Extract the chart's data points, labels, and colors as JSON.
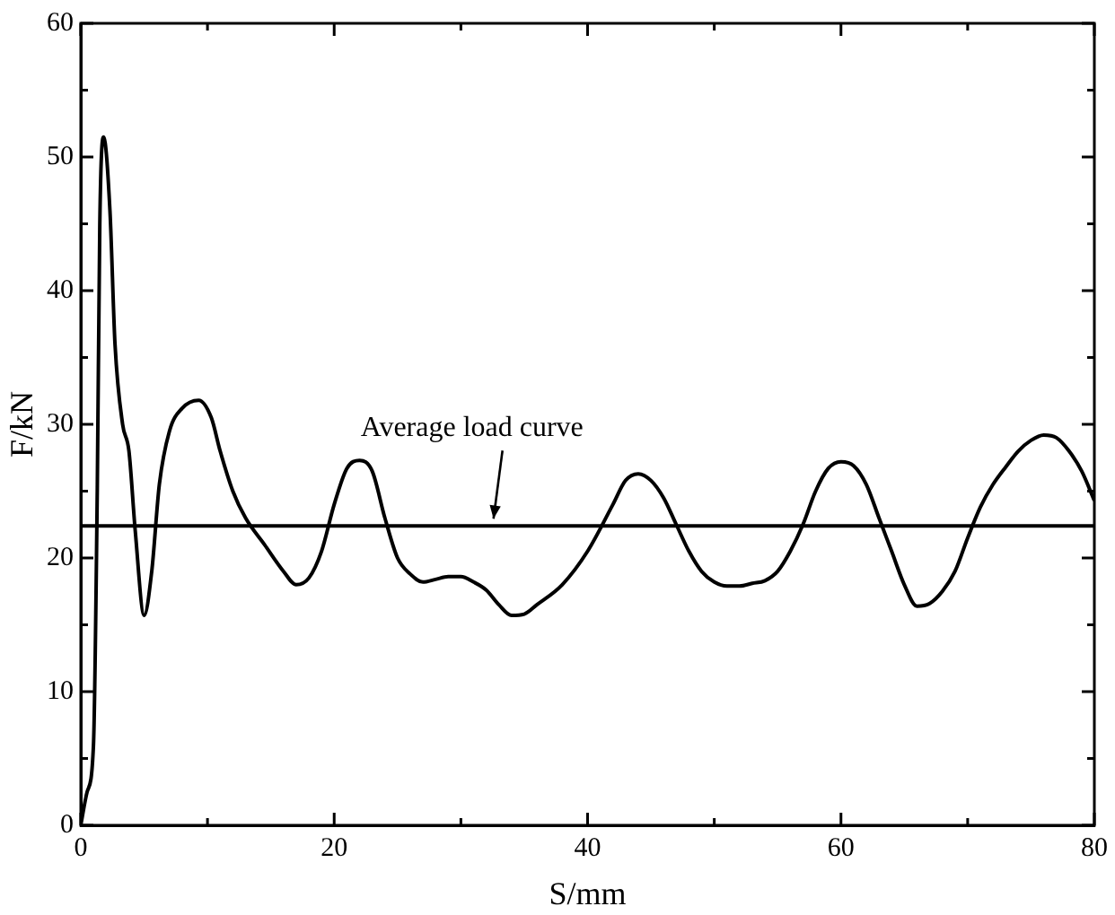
{
  "chart_data": {
    "type": "line",
    "xlabel": "S/mm",
    "ylabel": "F/kN",
    "x": [
      0,
      0.5,
      1,
      1.3,
      1.5,
      1.8,
      2.3,
      2.7,
      3.3,
      3.8,
      4.3,
      5,
      5.6,
      6.2,
      7,
      8,
      9.3,
      10.3,
      11,
      12,
      13,
      14.5,
      16,
      17,
      18,
      19,
      20,
      21,
      22,
      23,
      24,
      25,
      26,
      27,
      28,
      29,
      30,
      31,
      32,
      33,
      34,
      35,
      36,
      38,
      40,
      42,
      43,
      44,
      45,
      46,
      47,
      48,
      49,
      50,
      51,
      52,
      53,
      54,
      55,
      56,
      57,
      58,
      59,
      60,
      61,
      62,
      63,
      64,
      65,
      66,
      67,
      68,
      69,
      70,
      71,
      72,
      73,
      74,
      75,
      76,
      77,
      78,
      79,
      80
    ],
    "series": [
      {
        "color": "#000000",
        "values": [
          0,
          2.5,
          6,
          25,
          45,
          51.5,
          46,
          36,
          30,
          28,
          22,
          15.7,
          19,
          25.5,
          29.5,
          31.2,
          31.8,
          30.5,
          28,
          25,
          23,
          21,
          19,
          18,
          18.5,
          20.5,
          24,
          26.7,
          27.3,
          26.5,
          23,
          20,
          18.8,
          18.2,
          18.4,
          18.6,
          18.6,
          18.2,
          17.6,
          16.5,
          15.7,
          15.8,
          16.5,
          18,
          20.5,
          24,
          25.8,
          26.3,
          25.8,
          24.5,
          22.5,
          20.5,
          19,
          18.2,
          17.9,
          17.9,
          18.1,
          18.3,
          19,
          20.5,
          22.5,
          25,
          26.7,
          27.2,
          26.9,
          25.5,
          23,
          20.5,
          18,
          16.4,
          16.6,
          17.5,
          19,
          21.5,
          23.8,
          25.5,
          26.8,
          28,
          28.8,
          29.2,
          29,
          28,
          26.5,
          24.3
        ]
      }
    ],
    "xlim": [
      0,
      80
    ],
    "ylim": [
      0,
      60
    ],
    "xticks": [
      0,
      {
        "value": 10,
        "label": null
      },
      20,
      {
        "value": 30,
        "label": null
      },
      40,
      {
        "value": 50,
        "label": null
      },
      60,
      {
        "value": 70,
        "label": null
      },
      80
    ],
    "yticks": [
      0,
      {
        "value": 5,
        "label": null
      },
      10,
      {
        "value": 15,
        "label": null
      },
      20,
      {
        "value": 25,
        "label": null
      },
      30,
      {
        "value": 35,
        "label": null
      },
      40,
      {
        "value": 45,
        "label": null
      },
      50,
      {
        "value": 55,
        "label": null
      },
      60
    ],
    "ref_lines": [
      {
        "axis": "y",
        "value": 22.4,
        "color": "#000000"
      }
    ],
    "annotations": [
      {
        "text": "Average load curve",
        "x": 33,
        "y": 22.4
      }
    ],
    "grid": false,
    "legend": false,
    "marker": "none",
    "line_style": "solid"
  }
}
